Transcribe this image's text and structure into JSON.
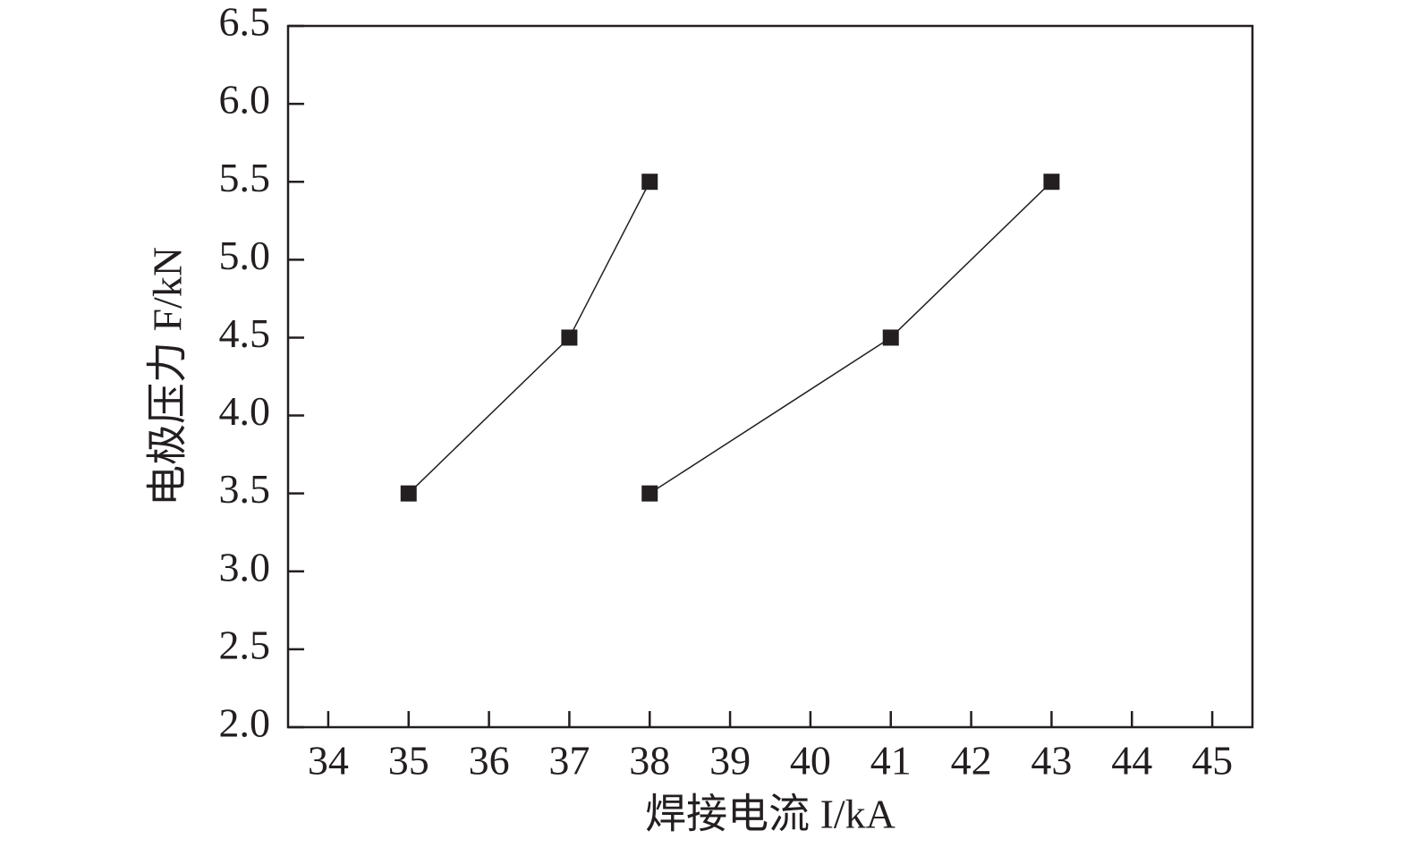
{
  "chart_data": {
    "type": "line",
    "xlabel": "焊接电流 I/kA",
    "ylabel": "电极压力 F/kN",
    "xlim": [
      33.5,
      45.5
    ],
    "xticks": [
      34,
      35,
      36,
      37,
      38,
      39,
      40,
      41,
      42,
      43,
      44,
      45
    ],
    "ylim": [
      2,
      6.5
    ],
    "yticks": [
      {
        "value": 2,
        "label": "2.0"
      },
      2.5,
      {
        "value": 3,
        "label": "3.0"
      },
      3.5,
      {
        "value": 4,
        "label": "4.0"
      },
      4.5,
      {
        "value": 5,
        "label": "5.0"
      },
      5.5,
      {
        "value": 6,
        "label": "6.0"
      },
      6.5
    ],
    "grid": false,
    "series": [
      {
        "color": "#231f20",
        "x": [
          35,
          37,
          38
        ],
        "values": [
          3.5,
          4.5,
          5.5
        ]
      },
      {
        "color": "#231f20",
        "x": [
          38,
          41,
          43
        ],
        "values": [
          3.5,
          4.5,
          5.5
        ]
      }
    ]
  }
}
